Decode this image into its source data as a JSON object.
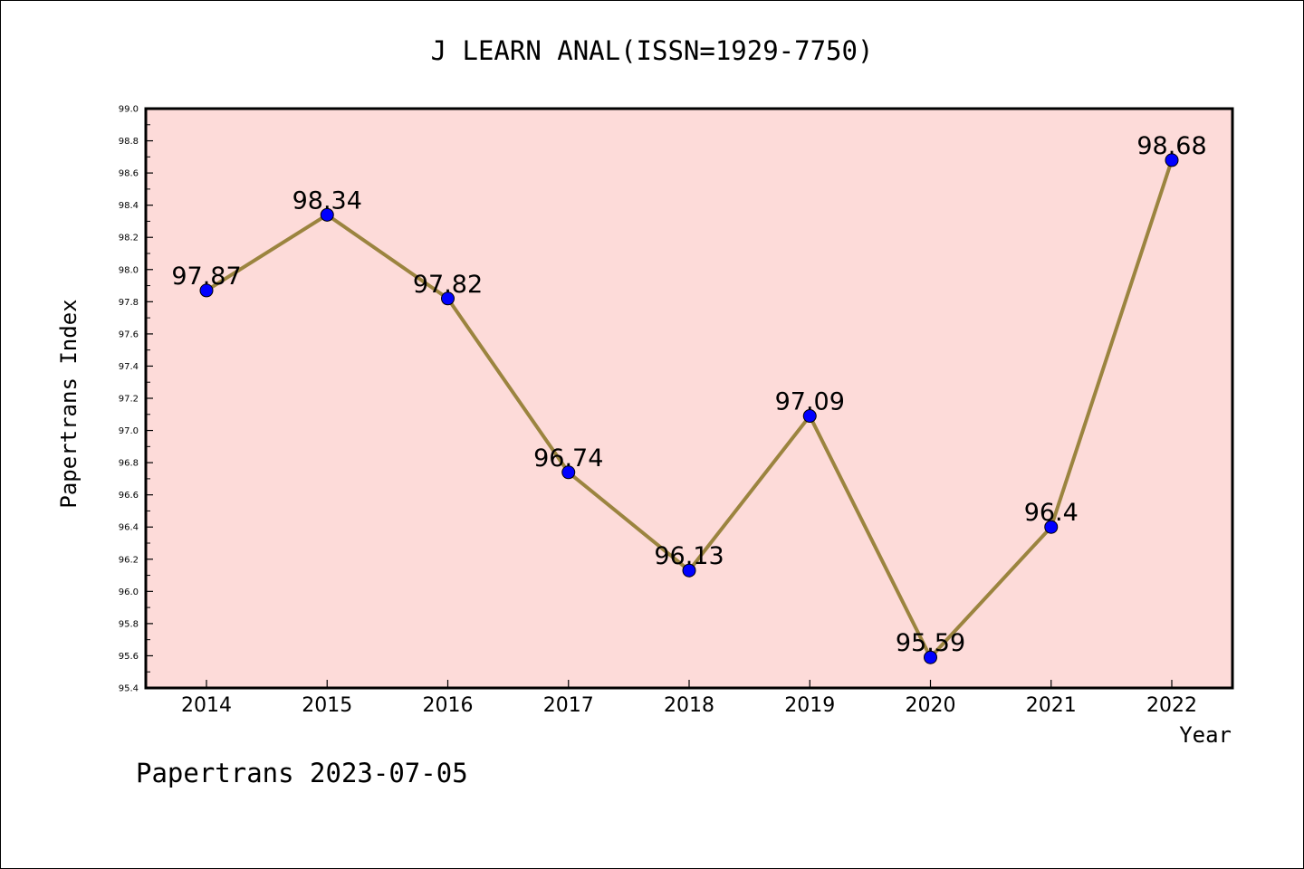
{
  "chart_data": {
    "type": "line",
    "title": "J LEARN ANAL(ISSN=1929-7750)",
    "xlabel": "Year",
    "ylabel": "Papertrans Index",
    "categories": [
      "2014",
      "2015",
      "2016",
      "2017",
      "2018",
      "2019",
      "2020",
      "2021",
      "2022"
    ],
    "series": [
      {
        "values": [
          97.87,
          98.34,
          97.82,
          96.74,
          96.13,
          97.09,
          95.59,
          96.4,
          98.68
        ],
        "labels": [
          "97.87",
          "98.34",
          "97.82",
          "96.74",
          "96.13",
          "97.09",
          "95.59",
          "96.4",
          "98.68"
        ]
      }
    ],
    "ylim": [
      95.4,
      99.0
    ],
    "yticks": [
      "95.4",
      "95.6",
      "95.8",
      "96.0",
      "96.2",
      "96.4",
      "96.6",
      "96.8",
      "97.0",
      "97.2",
      "97.4",
      "97.6",
      "97.8",
      "98.0",
      "98.2",
      "98.4",
      "98.6",
      "98.8",
      "99.0"
    ],
    "grid": false,
    "legend": "none",
    "footer": "Papertrans 2023-07-05",
    "colors": {
      "plot_background": "#fddbd9",
      "line": "#9b843f",
      "marker": "#0000ff"
    }
  }
}
